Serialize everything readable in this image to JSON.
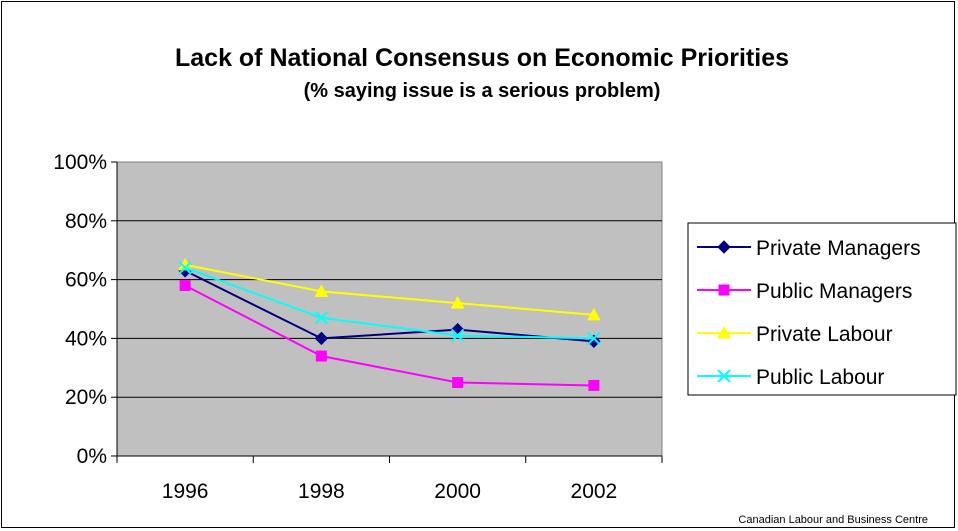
{
  "chart_data": {
    "type": "line",
    "title": "Lack of National Consensus on Economic Priorities",
    "subtitle": "(% saying issue is a serious problem)",
    "categories": [
      "1996",
      "1998",
      "2000",
      "2002"
    ],
    "ylim": [
      0,
      100
    ],
    "y_ticks": [
      "0%",
      "20%",
      "40%",
      "60%",
      "80%",
      "100%"
    ],
    "y_tick_values": [
      0,
      20,
      40,
      60,
      80,
      100
    ],
    "grid": true,
    "legend_position": "right",
    "plot_background": "#c0c0c0",
    "series": [
      {
        "name": "Private Managers",
        "values": [
          63,
          40,
          43,
          39
        ],
        "color": "#000080",
        "marker": "diamond"
      },
      {
        "name": "Public Managers",
        "values": [
          58,
          34,
          25,
          24
        ],
        "color": "#ff00ff",
        "marker": "square"
      },
      {
        "name": "Private Labour",
        "values": [
          65,
          56,
          52,
          48
        ],
        "color": "#ffff00",
        "marker": "triangle"
      },
      {
        "name": "Public Labour",
        "values": [
          64,
          47,
          41,
          40
        ],
        "color": "#00ffff",
        "marker": "x"
      }
    ],
    "source": "Canadian Labour and Business Centre"
  }
}
